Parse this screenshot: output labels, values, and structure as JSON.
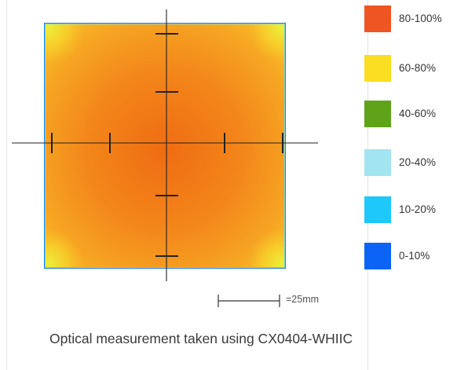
{
  "legend": {
    "items": [
      {
        "label": "80-100%",
        "color": "#ee5522"
      },
      {
        "label": "60-80%",
        "color": "#fbdd22"
      },
      {
        "label": "40-60%",
        "color": "#5fa319"
      },
      {
        "label": "20-40%",
        "color": "#a2e4ef"
      },
      {
        "label": "10-20%",
        "color": "#1fc8fa"
      },
      {
        "label": "0-10%",
        "color": "#0b64f5"
      }
    ]
  },
  "scale_bar": {
    "label": "=25mm"
  },
  "caption": "Optical measurement taken using CX0404-WHIIC"
}
